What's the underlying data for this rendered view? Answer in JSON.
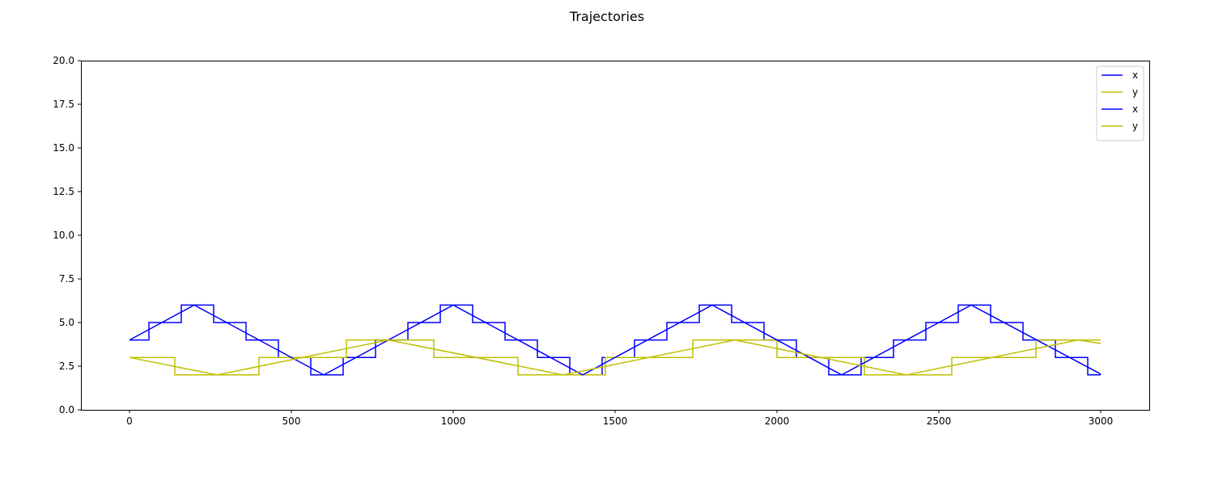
{
  "chart_data": {
    "type": "line",
    "title": "Trajectories",
    "xlabel": "",
    "ylabel": "",
    "xlim": [
      -150,
      3150
    ],
    "ylim": [
      0,
      20
    ],
    "xticks": [
      0,
      500,
      1000,
      1500,
      2000,
      2500,
      3000
    ],
    "xtick_labels": [
      "0",
      "500",
      "1000",
      "1500",
      "2000",
      "2500",
      "3000"
    ],
    "yticks": [
      0,
      2.5,
      5,
      7.5,
      10,
      12.5,
      15,
      17.5,
      20
    ],
    "ytick_labels": [
      "0.0",
      "2.5",
      "5.0",
      "7.5",
      "10.0",
      "12.5",
      "15.0",
      "17.5",
      "20.0"
    ],
    "grid": false,
    "legend_position": "top-right",
    "series": [
      {
        "name": "x",
        "color": "#0000ff",
        "style": "step",
        "x": [
          0,
          60,
          60,
          160,
          160,
          260,
          260,
          360,
          360,
          460,
          460,
          560,
          560,
          660,
          660,
          760,
          760,
          860,
          860,
          960,
          960,
          1060,
          1060,
          1160,
          1160,
          1260,
          1260,
          1360,
          1360,
          1460,
          1460,
          1560,
          1560,
          1660,
          1660,
          1760,
          1760,
          1860,
          1860,
          1960,
          1960,
          2060,
          2060,
          2160,
          2160,
          2260,
          2260,
          2360,
          2360,
          2460,
          2460,
          2560,
          2560,
          2660,
          2660,
          2760,
          2760,
          2860,
          2860,
          2960,
          2960,
          3000
        ],
        "y": [
          4,
          4,
          5,
          5,
          6,
          6,
          5,
          5,
          4,
          4,
          3,
          3,
          2,
          2,
          3,
          3,
          4,
          4,
          5,
          5,
          6,
          6,
          5,
          5,
          4,
          4,
          3,
          3,
          2,
          2,
          3,
          3,
          4,
          4,
          5,
          5,
          6,
          6,
          5,
          5,
          4,
          4,
          3,
          3,
          2,
          2,
          3,
          3,
          4,
          4,
          5,
          5,
          6,
          6,
          5,
          5,
          4,
          4,
          3,
          3,
          2,
          2
        ]
      },
      {
        "name": "y",
        "color": "#bfbf00",
        "style": "step",
        "x": [
          0,
          140,
          140,
          400,
          400,
          670,
          670,
          940,
          940,
          1200,
          1200,
          1470,
          1470,
          1740,
          1740,
          2000,
          2000,
          2270,
          2270,
          2540,
          2540,
          2800,
          2800,
          3000
        ],
        "y": [
          3,
          3,
          2,
          2,
          3,
          3,
          4,
          4,
          3,
          3,
          2,
          2,
          3,
          3,
          4,
          4,
          3,
          3,
          2,
          2,
          3,
          3,
          4,
          4
        ]
      },
      {
        "name": "x",
        "color": "#0000ff",
        "style": "line",
        "x": [
          0,
          200,
          600,
          1000,
          1400,
          1800,
          2200,
          2600,
          3000
        ],
        "y": [
          4,
          6,
          2,
          6,
          2,
          6,
          2,
          6,
          2.05
        ]
      },
      {
        "name": "y",
        "color": "#bfbf00",
        "style": "line",
        "x": [
          0,
          270,
          800,
          1340,
          1870,
          2400,
          2930,
          3000
        ],
        "y": [
          3,
          2,
          4,
          2,
          4,
          2,
          4,
          3.8
        ]
      }
    ]
  }
}
